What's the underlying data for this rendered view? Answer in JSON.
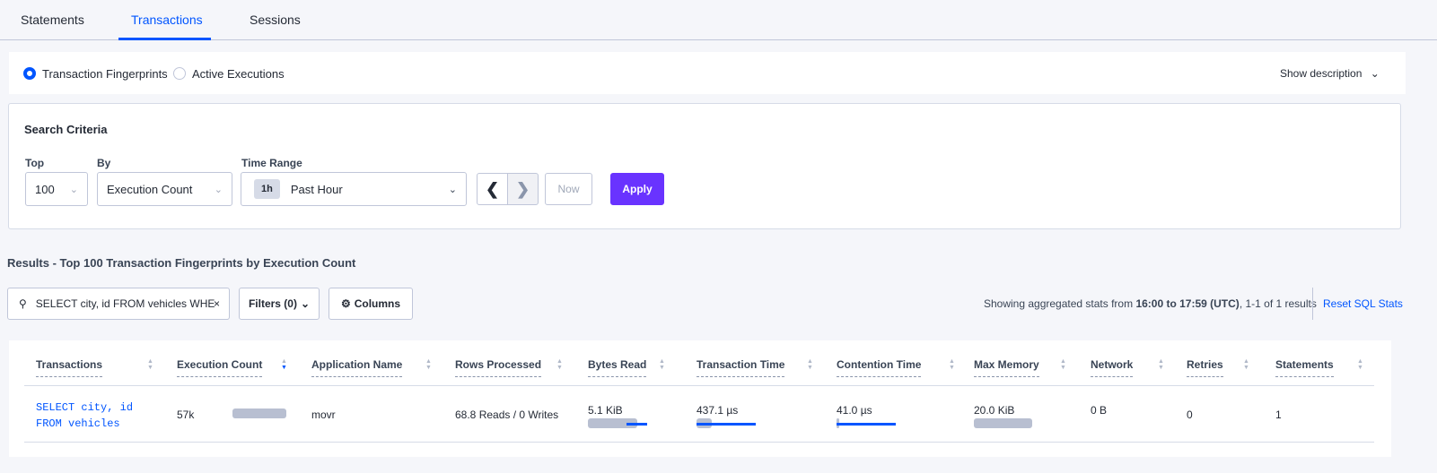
{
  "tabs": [
    {
      "label": "Statements"
    },
    {
      "label": "Transactions",
      "active": true
    },
    {
      "label": "Sessions"
    }
  ],
  "view": {
    "options": [
      {
        "label": "Transaction Fingerprints",
        "selected": true
      },
      {
        "label": "Active Executions",
        "selected": false
      }
    ],
    "show_description": "Show description"
  },
  "search": {
    "title": "Search Criteria",
    "top_label": "Top",
    "top_value": "100",
    "by_label": "By",
    "by_value": "Execution Count",
    "time_label": "Time Range",
    "time_badge": "1h",
    "time_value": "Past Hour",
    "now": "Now",
    "apply": "Apply"
  },
  "results": {
    "title": "Results - Top 100 Transaction Fingerprints by Execution Count",
    "search_value": "SELECT city, id FROM vehicles WHE",
    "filters": "Filters (0)",
    "columns": "Columns",
    "stats_prefix": "Showing aggregated stats from ",
    "stats_range": "16:00 to 17:59 (UTC)",
    "stats_suffix": ", 1-1 of 1 results",
    "reset": "Reset SQL Stats"
  },
  "table": {
    "headers": [
      "Transactions",
      "Execution Count",
      "Application Name",
      "Rows Processed",
      "Bytes Read",
      "Transaction Time",
      "Contention Time",
      "Max Memory",
      "Network",
      "Retries",
      "Statements"
    ],
    "sorted_column": "Execution Count",
    "sort_direction": "descending",
    "rows": [
      {
        "transaction_line1": "SELECT city, id",
        "transaction_line2": "FROM vehicles",
        "execution_count": "57k",
        "application": "movr",
        "rows_processed": "68.8 Reads / 0 Writes",
        "bytes_read": "5.1 KiB",
        "transaction_time": "437.1 µs",
        "contention_time": "41.0 µs",
        "max_memory": "20.0 KiB",
        "network": "0 B",
        "retries": "0",
        "statements": "1"
      }
    ]
  },
  "colors": {
    "accent": "#0055ff",
    "apply": "#6933ff",
    "bar": "#b8bfd1"
  }
}
